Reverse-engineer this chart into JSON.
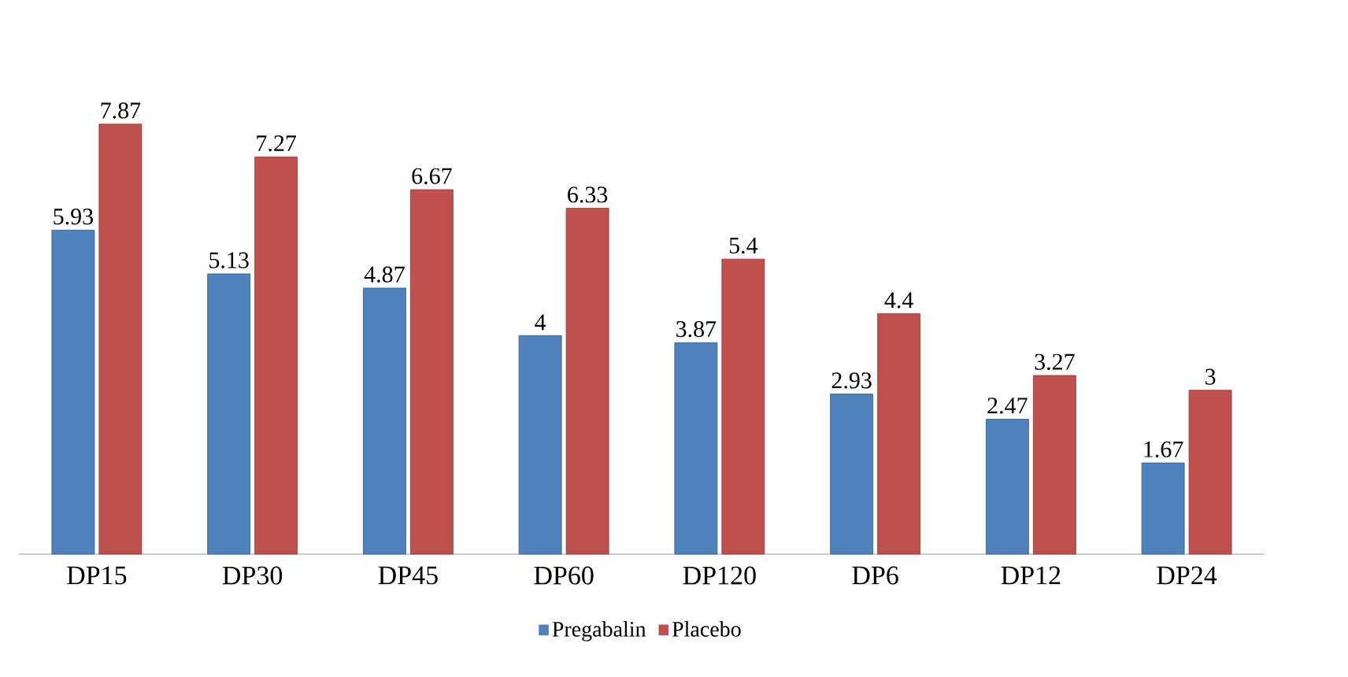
{
  "chart_data": {
    "type": "bar",
    "categories": [
      "DP15",
      "DP30",
      "DP45",
      "DP60",
      "DP120",
      "DP6",
      "DP12",
      "DP24"
    ],
    "series": [
      {
        "name": "Pregabalin",
        "color": "#4f81bd",
        "values": [
          5.93,
          5.13,
          4.87,
          4,
          3.87,
          2.93,
          2.47,
          1.67
        ]
      },
      {
        "name": "Placebo",
        "color": "#c0504d",
        "values": [
          7.87,
          7.27,
          6.67,
          6.33,
          5.4,
          4.4,
          3.27,
          3
        ]
      }
    ],
    "data_labels": true,
    "legend": "bottom"
  }
}
